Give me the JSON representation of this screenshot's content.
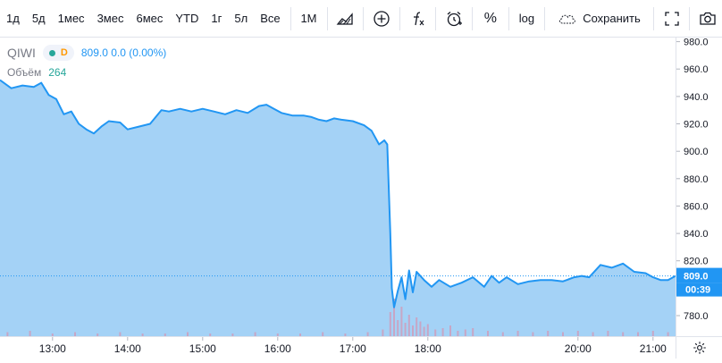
{
  "toolbar": {
    "periods": [
      "1д",
      "5д",
      "1мес",
      "3мес",
      "6мес",
      "YTD",
      "1г",
      "5л",
      "Все"
    ],
    "interval": "1М",
    "log_label": "log",
    "percent_label": "%",
    "save_label": "Сохранить"
  },
  "legend": {
    "symbol": "QIWI",
    "badge": "D",
    "values": "809.0  0.0 (0.00%)",
    "volume_label": "Объём",
    "volume_value": "264"
  },
  "colors": {
    "line": "#2196f3",
    "fill": "#9fd0f5",
    "volume": "#c7a6c5",
    "price_tag": "#2196f3"
  },
  "price_labels": {
    "last_price": "809.0",
    "countdown": "00:39"
  },
  "chart_data": {
    "type": "area",
    "title": "",
    "xlabel": "",
    "ylabel": "",
    "ylim": [
      765,
      983
    ],
    "xlim": [
      12.3,
      21.3
    ],
    "x_ticks": [
      13,
      14,
      15,
      16,
      17,
      18,
      20,
      21
    ],
    "x_tick_labels": [
      "13:00",
      "14:00",
      "15:00",
      "16:00",
      "17:00",
      "18:00",
      "20:00",
      "21:00"
    ],
    "y_ticks": [
      780,
      800,
      820,
      840,
      860,
      880,
      900,
      920,
      940,
      960,
      980
    ],
    "y_tick_labels": [
      "780.0",
      "800.0",
      "820.0",
      "840.0",
      "860.0",
      "880.0",
      "900.0",
      "920.0",
      "940.0",
      "960.0",
      "980.0"
    ],
    "grid": false,
    "last_value": 809.0,
    "series": [
      {
        "x": [
          12.3,
          12.45,
          12.6,
          12.75,
          12.85,
          12.95,
          13.05,
          13.15,
          13.25,
          13.35,
          13.45,
          13.55,
          13.65,
          13.75,
          13.9,
          14.0,
          14.15,
          14.3,
          14.45,
          14.55,
          14.7,
          14.85,
          15.0,
          15.15,
          15.3,
          15.45,
          15.6,
          15.75,
          15.85,
          15.95,
          16.05,
          16.2,
          16.35,
          16.45,
          16.55,
          16.65,
          16.75,
          16.85,
          17.0,
          17.15,
          17.25,
          17.35,
          17.42,
          17.46,
          17.5,
          17.52,
          17.55,
          17.6,
          17.65,
          17.7,
          17.75,
          17.8,
          17.85,
          17.95,
          18.05,
          18.15,
          18.3,
          18.45,
          18.6,
          18.75,
          18.85,
          18.95,
          19.05,
          19.2,
          19.35,
          19.5,
          19.65,
          19.8,
          19.95,
          20.05,
          20.15,
          20.3,
          20.45,
          20.6,
          20.75,
          20.9,
          21.0,
          21.1,
          21.2,
          21.3
        ],
        "y": [
          952,
          946,
          948,
          947,
          950,
          941,
          938,
          927,
          929,
          920,
          916,
          913,
          918,
          922,
          921,
          916,
          918,
          920,
          930,
          929,
          931,
          929,
          931,
          929,
          927,
          930,
          928,
          933,
          934,
          931,
          928,
          926,
          926,
          925,
          923,
          922,
          924,
          923,
          922,
          919,
          915,
          905,
          908,
          905,
          840,
          800,
          786,
          798,
          808,
          792,
          813,
          797,
          812,
          806,
          801,
          806,
          801,
          804,
          808,
          801,
          809,
          804,
          808,
          803,
          805,
          806,
          806,
          805,
          808,
          809,
          808,
          817,
          815,
          818,
          812,
          811,
          808,
          806,
          806,
          809
        ]
      }
    ],
    "volume": {
      "label": "Объём",
      "x": [
        12.4,
        12.7,
        13.0,
        13.3,
        13.6,
        13.9,
        14.2,
        14.5,
        14.8,
        15.1,
        15.4,
        15.7,
        16.0,
        16.3,
        16.6,
        16.9,
        17.2,
        17.4,
        17.5,
        17.55,
        17.6,
        17.65,
        17.7,
        17.75,
        17.8,
        17.85,
        17.9,
        17.95,
        18.0,
        18.1,
        18.2,
        18.3,
        18.4,
        18.5,
        18.6,
        18.8,
        19.0,
        19.2,
        19.4,
        19.6,
        19.8,
        20.0,
        20.2,
        20.4,
        20.6,
        20.8,
        21.0,
        21.2
      ],
      "values": [
        3,
        4,
        2,
        3,
        2,
        3,
        2,
        2,
        3,
        2,
        2,
        3,
        2,
        2,
        3,
        2,
        3,
        5,
        18,
        28,
        12,
        22,
        10,
        16,
        8,
        14,
        11,
        7,
        9,
        5,
        6,
        8,
        4,
        5,
        6,
        4,
        3,
        4,
        3,
        4,
        3,
        4,
        3,
        4,
        3,
        3,
        4,
        3
      ]
    }
  }
}
